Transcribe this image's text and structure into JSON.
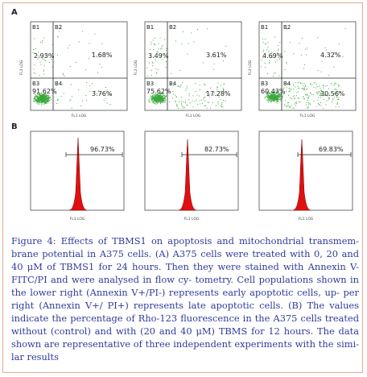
{
  "panel_a_letter": "A",
  "panel_b_letter": "B",
  "panel_a": {
    "quadrant_labels": [
      "B1",
      "B2",
      "B3",
      "B4"
    ],
    "x_axis_label": "FL1 LOG",
    "y_axis_label": "FL3 LOG",
    "plots": [
      {
        "upper_left": "2.93%",
        "upper_right": "1.68%",
        "lower_left": "91.62%",
        "lower_right": "3.76%"
      },
      {
        "upper_left": "3.49%",
        "upper_right": "3.61%",
        "lower_left": "75.62%",
        "lower_right": "17.28%"
      },
      {
        "upper_left": "4.69%",
        "upper_right": "4.32%",
        "lower_left": "60.43%",
        "lower_right": "30.56%"
      }
    ]
  },
  "panel_b": {
    "x_axis_label": "FL1 LOG",
    "plots": [
      {
        "percent": "96.73%"
      },
      {
        "percent": "82.73%"
      },
      {
        "percent": "69.83%"
      }
    ]
  },
  "caption": "Figure 4: Effects of TBMS1 on apoptosis and mitochondrial transmem- brane potential in A375 cells. (A) A375 cells were treated with 0, 20 and 40 μM of TBMS1 for 24 hours. Then they were stained with Annexin V-FITC/PI and were analysed in flow cy- tometry. Cell populations shown in the lower right (Annexin V+/PI-) represents early apoptotic cells, up- per right (Annexin V+/ PI+) represents late apoptotic cells. (B) The values indicate the percentage of Rho-123 fluorescence in the A375 cells treated without (control) and with (20 and 40 μM) TBMS for 12 hours. The data shown are representative of three independent experiments with the simi- lar results",
  "colors": {
    "dots": "#3aa83a",
    "histogram": "#e01010",
    "caption_text": "#2f3b9a",
    "frame_border": "#e8a98f"
  }
}
